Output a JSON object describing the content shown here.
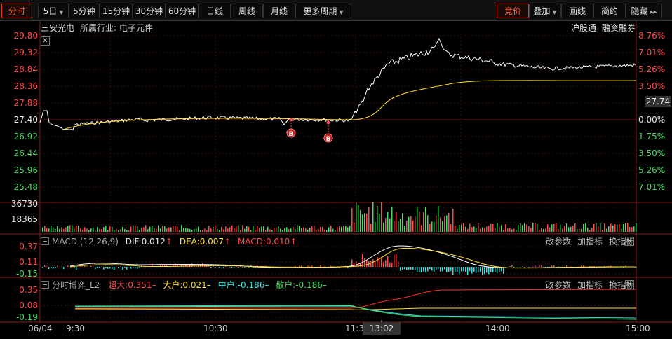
{
  "toolbar": {
    "tab_intraday": "分时",
    "period_5d": "5日",
    "period_5m": "5分钟",
    "period_15m": "15分钟",
    "period_30m": "30分钟",
    "period_60m": "60分钟",
    "period_day": "日线",
    "period_week": "周线",
    "period_month": "月线",
    "period_more": "更多周期",
    "call_auction": "竞价",
    "overlay": "叠加",
    "draw": "画线",
    "simple": "简约",
    "hide": "隐藏"
  },
  "stock": {
    "name": "三安光电",
    "industry": "所属行业: 电子元件"
  },
  "links": {
    "hsgt": "沪股通",
    "margin": "融资融券"
  },
  "price_axis": {
    "left": [
      "29.80",
      "29.32",
      "28.84",
      "28.36",
      "27.88",
      "27.40",
      "26.92",
      "26.44",
      "25.96",
      "25.48"
    ],
    "right": [
      "8.76%",
      "7.01%",
      "5.26%",
      "3.50%",
      "1.75%",
      "0.00%",
      "1.75%",
      "3.50%",
      "5.26%",
      "7.01%"
    ],
    "current": "27.74"
  },
  "volume_axis": [
    "36730",
    "18365"
  ],
  "macd": {
    "name": "MACD (12,26,9)",
    "dif": "DIF:0.012",
    "dea": "DEA:0.007",
    "macd": "MACD:0.010",
    "axis": [
      "0.37",
      "0.11",
      "-0.15"
    ],
    "btn_params": "改参数",
    "btn_add": "加指标",
    "btn_switch": "换指标"
  },
  "game": {
    "name": "分时博弈_L2",
    "super": "超大:0.351",
    "large": "大户:0.021",
    "mid": "中户:-0.186",
    "small": "散户:-0.186",
    "axis": [
      "0.35",
      "0.08",
      "-0.19"
    ],
    "btn_params": "改参数",
    "btn_add": "加指标",
    "btn_switch": "换指标"
  },
  "time_axis": {
    "date": "06/04",
    "t930": "9:30",
    "t1030": "10:30",
    "t1130": "11:30",
    "t1400": "14:00",
    "t1500": "15:00",
    "crosshair": "13:02"
  },
  "markers": {
    "b1": "B",
    "b2": "B"
  },
  "colors": {
    "up": "#ff4a4a",
    "down": "#4cd964",
    "price_line": "#ffffff",
    "avg_line": "#ffe033",
    "accent": "#ff5a3c"
  }
}
